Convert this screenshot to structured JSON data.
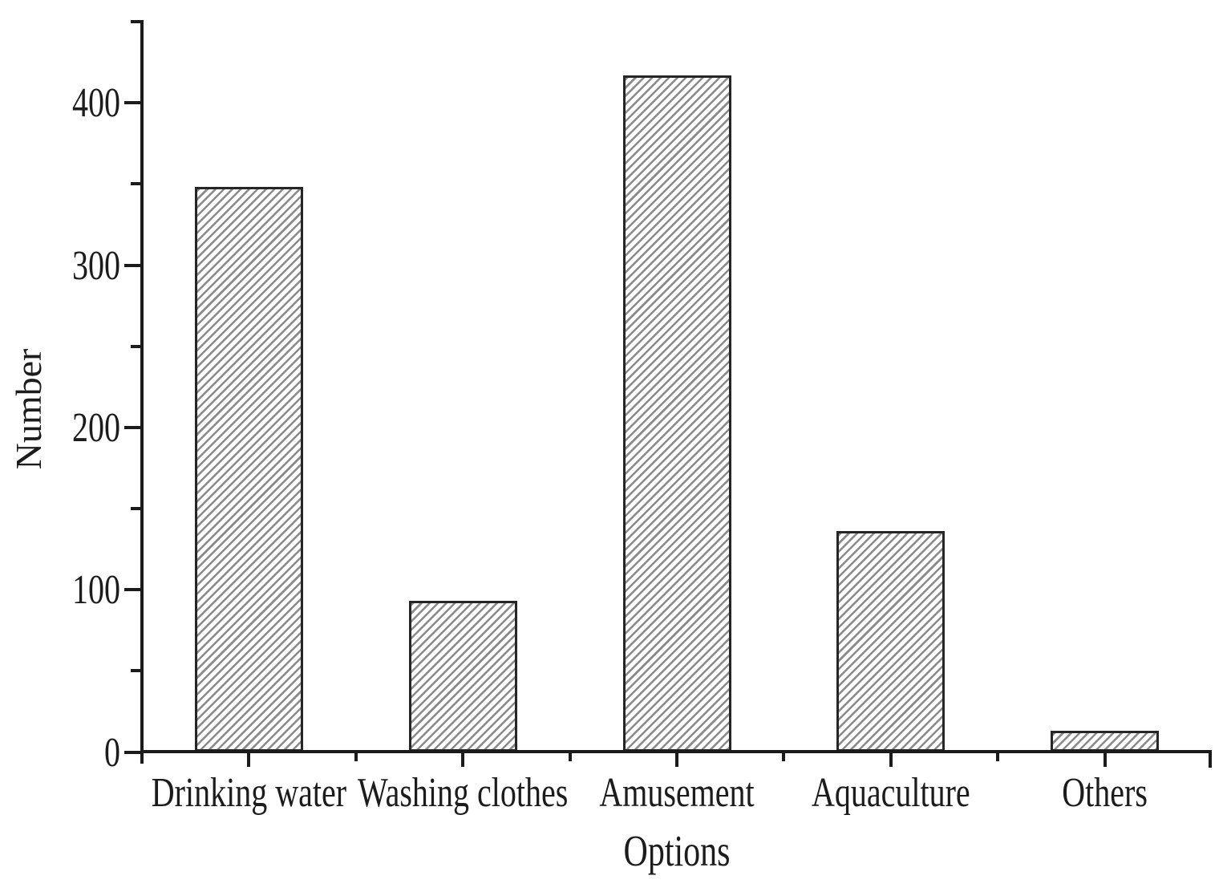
{
  "figure": {
    "background": "#ffffff",
    "text_color": "#1c1c1c",
    "axis_color": "#1b1b1b"
  },
  "chart_data": {
    "type": "bar",
    "categories": [
      "Drinking water",
      "Washing clothes",
      "Amusement",
      "Aquaculture",
      "Others"
    ],
    "values": [
      348,
      93,
      417,
      136,
      13
    ],
    "title": "",
    "xlabel": "Options",
    "ylabel": "Number",
    "ylim": [
      0,
      450
    ],
    "y_major_ticks": [
      0,
      100,
      200,
      300,
      400
    ],
    "y_minor_tick_step": 50,
    "x_tick_style": "major tick at each category center, minor tick at category boundaries, end caps on axis",
    "grid": false,
    "legend": false,
    "bar_style": {
      "fill": "diagonal-hatch",
      "hatch_direction": "/",
      "hatch_color": "#8a8a8a",
      "border_color": "#262626",
      "bar_background": "#ffffff"
    }
  }
}
